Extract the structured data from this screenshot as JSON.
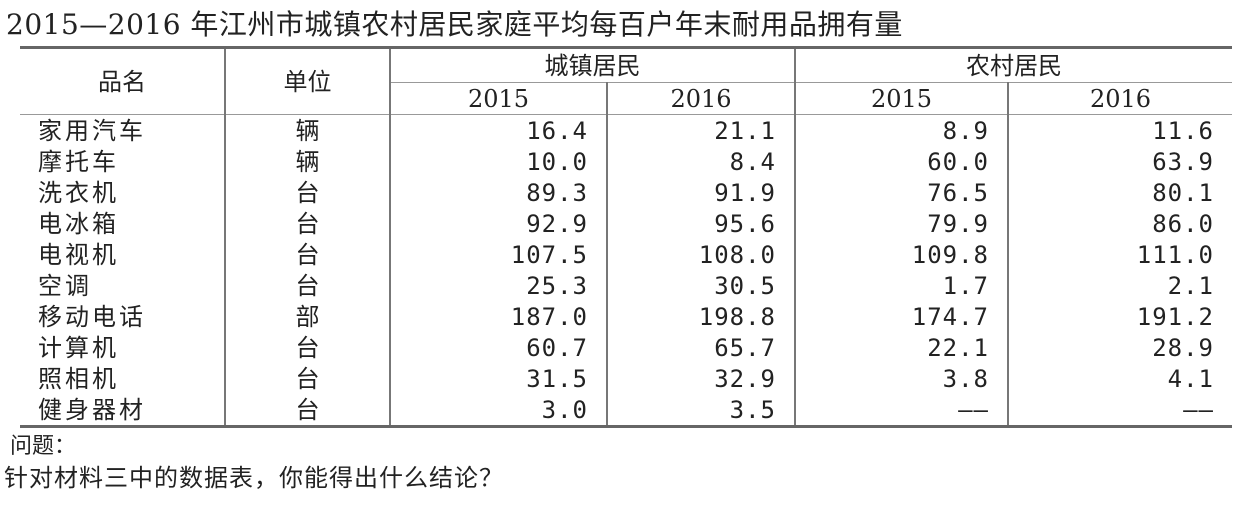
{
  "title": "2015—2016 年江州市城镇农村居民家庭平均每百户年末耐用品拥有量",
  "headers": {
    "name": "品名",
    "unit": "单位",
    "urban": "城镇居民",
    "rural": "农村居民",
    "years": [
      "2015",
      "2016",
      "2015",
      "2016"
    ]
  },
  "rows": [
    {
      "name": "家用汽车",
      "unit": "辆",
      "values": [
        "16.4",
        "21.1",
        "8.9",
        "11.6"
      ]
    },
    {
      "name": "摩托车",
      "unit": "辆",
      "values": [
        "10.0",
        "8.4",
        "60.0",
        "63.9"
      ]
    },
    {
      "name": "洗衣机",
      "unit": "台",
      "values": [
        "89.3",
        "91.9",
        "76.5",
        "80.1"
      ]
    },
    {
      "name": "电冰箱",
      "unit": "台",
      "values": [
        "92.9",
        "95.6",
        "79.9",
        "86.0"
      ]
    },
    {
      "name": "电视机",
      "unit": "台",
      "values": [
        "107.5",
        "108.0",
        "109.8",
        "111.0"
      ]
    },
    {
      "name": "空调",
      "unit": "台",
      "values": [
        "25.3",
        "30.5",
        "1.7",
        "2.1"
      ]
    },
    {
      "name": "移动电话",
      "unit": "部",
      "values": [
        "187.0",
        "198.8",
        "174.7",
        "191.2"
      ]
    },
    {
      "name": "计算机",
      "unit": "台",
      "values": [
        "60.7",
        "65.7",
        "22.1",
        "28.9"
      ]
    },
    {
      "name": "照相机",
      "unit": "台",
      "values": [
        "31.5",
        "32.9",
        "3.8",
        "4.1"
      ]
    },
    {
      "name": "健身器材",
      "unit": "台",
      "values": [
        "3.0",
        "3.5",
        "——",
        "——"
      ]
    }
  ],
  "question_label": "问题：",
  "question": "针对材料三中的数据表，你能得出什么结论？"
}
